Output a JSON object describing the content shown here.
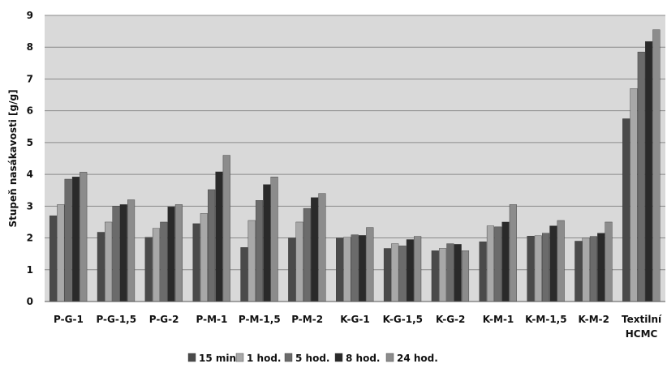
{
  "chart_data": {
    "type": "bar",
    "ylabel": "Stupeň nasákavosti [g/g]",
    "xlabel": "",
    "ylim": [
      0,
      9
    ],
    "yticks": [
      0,
      1,
      2,
      3,
      4,
      5,
      6,
      7,
      8,
      9
    ],
    "grid": true,
    "legend_position": "bottom",
    "categories": [
      [
        "P-G-1"
      ],
      [
        "P-G-1,5"
      ],
      [
        "P-G-2"
      ],
      [
        "P-M-1"
      ],
      [
        "P-M-1,5"
      ],
      [
        "P-M-2"
      ],
      [
        "K-G-1"
      ],
      [
        "K-G-1,5"
      ],
      [
        "K-G-2"
      ],
      [
        "K-M-1"
      ],
      [
        "K-M-1,5"
      ],
      [
        "K-M-2"
      ],
      [
        "Textilní",
        "HCMC"
      ]
    ],
    "series": [
      {
        "name": "15 min.",
        "color": "#4a4a4a",
        "values": [
          2.7,
          2.18,
          2.02,
          2.45,
          1.7,
          2.0,
          2.0,
          1.67,
          1.6,
          1.88,
          2.06,
          1.9,
          5.75
        ]
      },
      {
        "name": "1 hod.",
        "color": "#a8a8a8",
        "values": [
          3.05,
          2.5,
          2.3,
          2.77,
          2.55,
          2.5,
          2.02,
          1.82,
          1.67,
          2.38,
          2.07,
          2.0,
          6.7
        ]
      },
      {
        "name": "5 hod.",
        "color": "#6b6b6b",
        "values": [
          3.85,
          3.0,
          2.5,
          3.52,
          3.18,
          2.93,
          2.1,
          1.75,
          1.82,
          2.35,
          2.15,
          2.05,
          7.85
        ]
      },
      {
        "name": "8 hod.",
        "color": "#2a2a2a",
        "values": [
          3.92,
          3.05,
          2.98,
          4.08,
          3.68,
          3.27,
          2.08,
          1.95,
          1.8,
          2.5,
          2.38,
          2.15,
          8.18
        ]
      },
      {
        "name": "24 hod.",
        "color": "#8c8c8c",
        "values": [
          4.07,
          3.2,
          3.05,
          4.6,
          3.92,
          3.4,
          2.33,
          2.05,
          1.6,
          3.05,
          2.55,
          2.5,
          8.55
        ]
      }
    ]
  }
}
